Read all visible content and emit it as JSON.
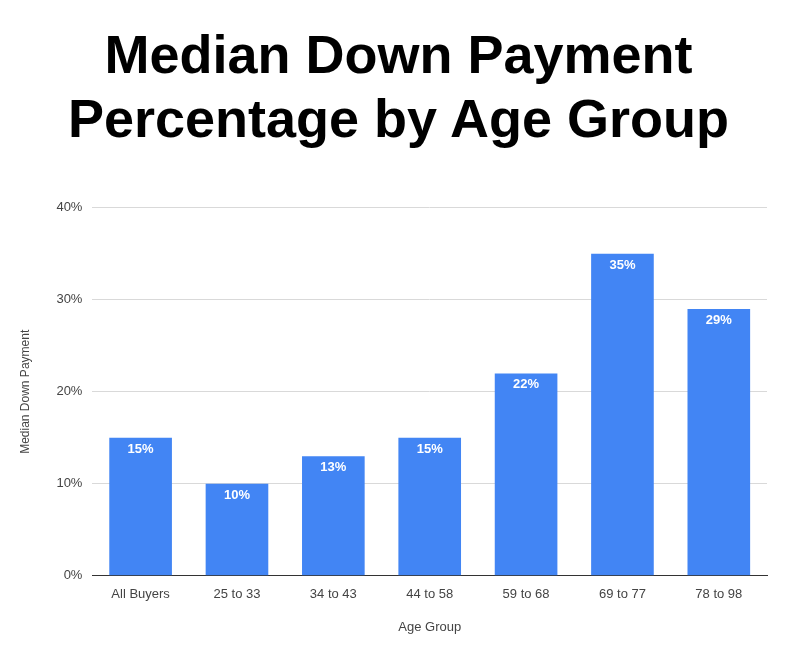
{
  "chart_data": {
    "type": "bar",
    "title": "Median Down Payment Percentage by Age Group",
    "x_label": "Age Group",
    "y_label": "Median Down Payment",
    "categories": [
      "All Buyers",
      "25 to 33",
      "34 to 43",
      "44 to 58",
      "59 to 68",
      "69 to 77",
      "78 to 98"
    ],
    "values": [
      15,
      10,
      13,
      15,
      22,
      35,
      29
    ],
    "value_labels": [
      "15%",
      "10%",
      "13%",
      "15%",
      "22%",
      "35%",
      "29%"
    ],
    "color": "#4285f4",
    "ylim": [
      0,
      40
    ],
    "yticks": [
      {
        "value": 0,
        "label": "0%"
      },
      {
        "value": 10,
        "label": "10%"
      },
      {
        "value": 20,
        "label": "20%"
      },
      {
        "value": 30,
        "label": "30%"
      },
      {
        "value": 40,
        "label": "40%"
      }
    ],
    "grid": true,
    "data_labels": true
  }
}
